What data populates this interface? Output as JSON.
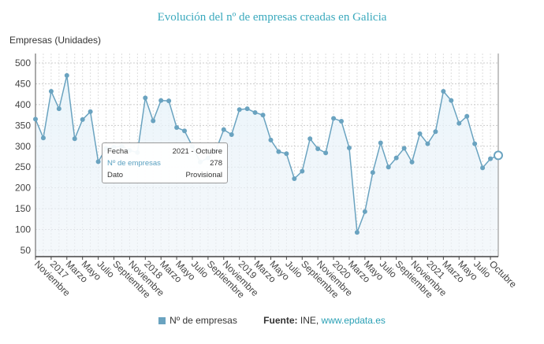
{
  "chart_data": {
    "type": "line",
    "title": "Evolución del nº de empresas creadas en Galicia",
    "ylabel": "Empresas (Unidades)",
    "ylim": [
      40,
      520
    ],
    "yticks": [
      50,
      100,
      150,
      200,
      250,
      300,
      350,
      400,
      450,
      500
    ],
    "grid": true,
    "x_tick_labels": [
      "Noviembre",
      "2017",
      "Marzo",
      "Mayo",
      "Julio",
      "Septiembre",
      "Noviembre",
      "2018",
      "Marzo",
      "Mayo",
      "Julio",
      "Septiembre",
      "Noviembre",
      "2019",
      "Marzo",
      "Mayo",
      "Julio",
      "Septiembre",
      "Noviembre",
      "2020",
      "Marzo",
      "Mayo",
      "Julio",
      "Septiembre",
      "Noviembre",
      "2021",
      "Marzo",
      "Mayo",
      "Julio",
      "Octubre"
    ],
    "series": [
      {
        "name": "Nº de empresas",
        "color": "#6aa3c0",
        "values": [
          365,
          320,
          432,
          390,
          470,
          318,
          364,
          383,
          263,
          295,
          298,
          300,
          290,
          285,
          416,
          361,
          410,
          409,
          345,
          337,
          300,
          262,
          272,
          290,
          340,
          328,
          388,
          390,
          381,
          375,
          315,
          287,
          282,
          222,
          240,
          318,
          294,
          284,
          367,
          360,
          296,
          93,
          143,
          237,
          308,
          250,
          272,
          295,
          262,
          330,
          306,
          335,
          432,
          410,
          355,
          372,
          306,
          248,
          270,
          278
        ]
      }
    ],
    "x_start": "2016 - Noviembre",
    "x_end": "2021 - Octubre"
  },
  "tooltip": {
    "fecha_label": "Fecha",
    "fecha": "2021 - Octubre",
    "value_label": "Nº de empresas",
    "value": "278",
    "dato_label": "Dato",
    "dato": "Provisional"
  },
  "legend": {
    "series": "Nº de empresas",
    "source_label": "Fuente:",
    "source": "INE,",
    "link": "www.epdata.es"
  }
}
